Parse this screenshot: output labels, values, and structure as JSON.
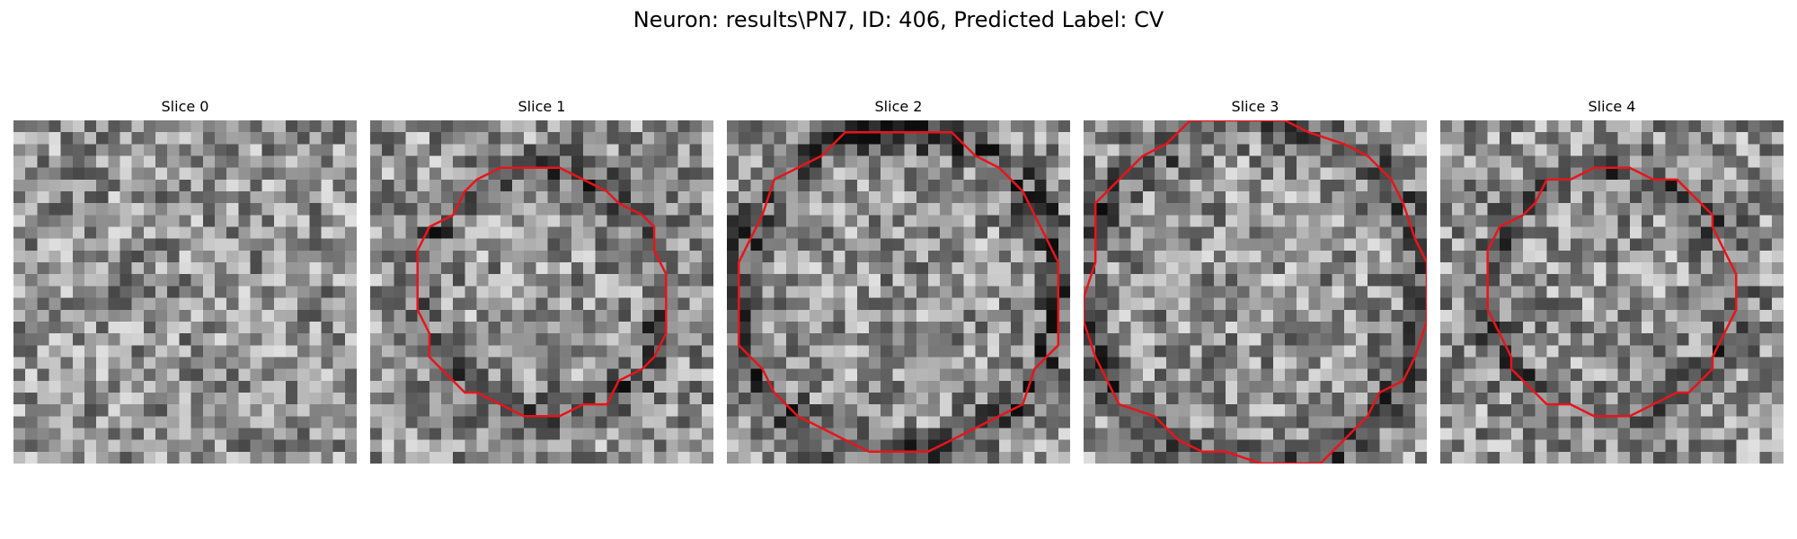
{
  "figure": {
    "title": "Neuron: results\\PN7, ID: 406, Predicted Label: CV"
  },
  "panels": [
    {
      "title": "Slice 0",
      "has_contour": false,
      "contour_radius": 0,
      "dark_ring": 0,
      "seed": 11
    },
    {
      "title": "Slice 1",
      "has_contour": true,
      "contour_radius": 0.36,
      "dark_ring": 0.25,
      "seed": 23
    },
    {
      "title": "Slice 2",
      "has_contour": true,
      "contour_radius": 0.47,
      "dark_ring": 0.35,
      "seed": 37
    },
    {
      "title": "Slice 3",
      "has_contour": true,
      "contour_radius": 0.5,
      "dark_ring": 0.3,
      "seed": 51
    },
    {
      "title": "Slice 4",
      "has_contour": true,
      "contour_radius": 0.36,
      "dark_ring": 0.22,
      "seed": 67
    }
  ],
  "colors": {
    "contour": "#e8141b",
    "background": "#ffffff"
  }
}
